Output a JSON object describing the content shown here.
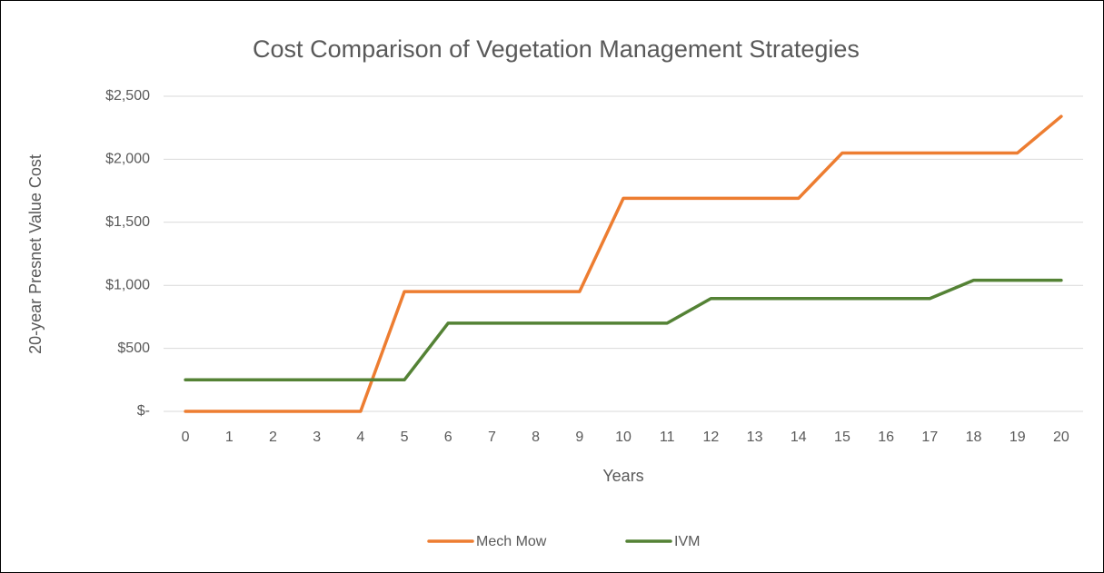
{
  "chart_data": {
    "type": "line",
    "title": "Cost Comparison of  Vegetation Management Strategies",
    "x_label": "Years",
    "y_label": "20-year Presnet Value Cost",
    "categories": [
      "0",
      "1",
      "2",
      "3",
      "4",
      "5",
      "6",
      "7",
      "8",
      "9",
      "10",
      "11",
      "12",
      "13",
      "14",
      "15",
      "16",
      "17",
      "18",
      "19",
      "20"
    ],
    "series": [
      {
        "name": "Mech Mow",
        "color": "#ED7D31",
        "values": [
          0,
          0,
          0,
          0,
          0,
          950,
          950,
          950,
          950,
          950,
          1690,
          1690,
          1690,
          1690,
          1690,
          2050,
          2050,
          2050,
          2050,
          2050,
          2340
        ]
      },
      {
        "name": "IVM",
        "color": "#548235",
        "values": [
          250,
          250,
          250,
          250,
          250,
          250,
          700,
          700,
          700,
          700,
          700,
          700,
          895,
          895,
          895,
          895,
          895,
          895,
          1040,
          1040,
          1040
        ]
      }
    ],
    "ylim": [
      0,
      2500
    ],
    "yticks": [
      {
        "value": 0,
        "label": "$-"
      },
      {
        "value": 500,
        "label": "$500"
      },
      {
        "value": 1000,
        "label": "$1,000"
      },
      {
        "value": 1500,
        "label": "$1,500"
      },
      {
        "value": 2000,
        "label": "$2,000"
      },
      {
        "value": 2500,
        "label": "$2,500"
      }
    ],
    "grid": true,
    "legend": "bottom"
  }
}
